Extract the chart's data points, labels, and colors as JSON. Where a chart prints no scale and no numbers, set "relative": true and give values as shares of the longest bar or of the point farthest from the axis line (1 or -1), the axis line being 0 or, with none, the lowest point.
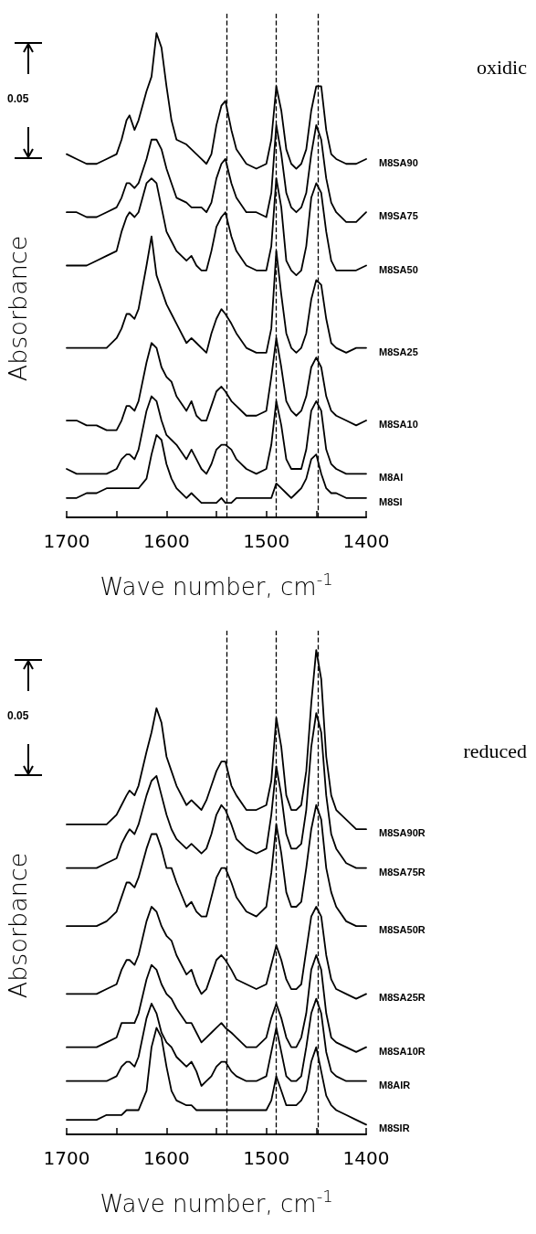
{
  "chart_data": [
    {
      "type": "line",
      "relative": true,
      "xlabel": "Wave number, cm$^{-1}$",
      "ylabel": "Absorbance",
      "annotations": [
        "0.05",
        "oxidic"
      ],
      "marker": "none",
      "line_style": "solid",
      "xlim": [
        1700,
        1400
      ],
      "xticks": [
        1700,
        {
          "value": 1650,
          "label": null
        },
        1600,
        {
          "value": 1550,
          "label": null
        },
        1500,
        {
          "value": 1450,
          "label": null
        },
        1400
      ],
      "x": [
        1700,
        1690,
        1680,
        1670,
        1660,
        1650,
        1645,
        1640,
        1637,
        1632,
        1628,
        1620,
        1615,
        1610,
        1605,
        1600,
        1595,
        1590,
        1580,
        1575,
        1570,
        1565,
        1560,
        1555,
        1550,
        1545,
        1541,
        1535,
        1530,
        1520,
        1510,
        1500,
        1495,
        1490,
        1485,
        1480,
        1475,
        1470,
        1465,
        1460,
        1455,
        1450,
        1445,
        1440,
        1435,
        1430,
        1420,
        1410,
        1400
      ],
      "ref_lines": [
        {
          "axis": "x",
          "value": 1540,
          "line_style": "dashed"
        },
        {
          "axis": "x",
          "value": 1490,
          "line_style": "dashed"
        },
        {
          "axis": "x",
          "value": 1448,
          "line_style": "dashed"
        }
      ],
      "series": [
        {
          "name": "M8SA90",
          "color": "#000000",
          "values": [
            0.75,
            0.74,
            0.73,
            0.73,
            0.74,
            0.75,
            0.78,
            0.82,
            0.83,
            0.8,
            0.82,
            0.88,
            0.91,
            1.0,
            0.97,
            0.89,
            0.82,
            0.78,
            0.77,
            0.76,
            0.75,
            0.74,
            0.73,
            0.75,
            0.81,
            0.85,
            0.86,
            0.8,
            0.76,
            0.73,
            0.72,
            0.73,
            0.78,
            0.89,
            0.84,
            0.76,
            0.73,
            0.72,
            0.73,
            0.76,
            0.84,
            0.89,
            0.89,
            0.8,
            0.75,
            0.74,
            0.73,
            0.73,
            0.74
          ]
        },
        {
          "name": "M9SA75",
          "color": "#000000",
          "values": [
            0.63,
            0.63,
            0.62,
            0.62,
            0.63,
            0.64,
            0.66,
            0.69,
            0.69,
            0.68,
            0.69,
            0.74,
            0.78,
            0.78,
            0.76,
            0.72,
            0.69,
            0.66,
            0.65,
            0.64,
            0.64,
            0.64,
            0.63,
            0.65,
            0.7,
            0.73,
            0.74,
            0.69,
            0.66,
            0.63,
            0.63,
            0.62,
            0.67,
            0.81,
            0.75,
            0.67,
            0.64,
            0.63,
            0.64,
            0.67,
            0.75,
            0.81,
            0.78,
            0.7,
            0.65,
            0.63,
            0.61,
            0.61,
            0.63
          ]
        },
        {
          "name": "M8SA50",
          "color": "#000000",
          "values": [
            0.52,
            0.52,
            0.52,
            0.53,
            0.54,
            0.55,
            0.59,
            0.62,
            0.63,
            0.62,
            0.63,
            0.69,
            0.7,
            0.69,
            0.64,
            0.59,
            0.57,
            0.55,
            0.53,
            0.54,
            0.52,
            0.51,
            0.51,
            0.55,
            0.6,
            0.62,
            0.63,
            0.58,
            0.55,
            0.52,
            0.51,
            0.51,
            0.56,
            0.7,
            0.64,
            0.53,
            0.51,
            0.5,
            0.51,
            0.56,
            0.66,
            0.69,
            0.67,
            0.59,
            0.53,
            0.51,
            0.51,
            0.51,
            0.52
          ]
        },
        {
          "name": "M8SA25",
          "color": "#000000",
          "values": [
            0.35,
            0.35,
            0.35,
            0.35,
            0.35,
            0.37,
            0.39,
            0.42,
            0.42,
            0.41,
            0.43,
            0.52,
            0.58,
            0.5,
            0.47,
            0.44,
            0.42,
            0.4,
            0.36,
            0.37,
            0.36,
            0.35,
            0.34,
            0.38,
            0.41,
            0.43,
            0.42,
            0.4,
            0.38,
            0.35,
            0.34,
            0.34,
            0.39,
            0.55,
            0.46,
            0.38,
            0.35,
            0.34,
            0.35,
            0.38,
            0.45,
            0.49,
            0.48,
            0.41,
            0.36,
            0.35,
            0.34,
            0.35,
            0.35
          ]
        },
        {
          "name": "M8SA10",
          "color": "#000000",
          "values": [
            0.2,
            0.2,
            0.19,
            0.19,
            0.18,
            0.18,
            0.2,
            0.23,
            0.23,
            0.22,
            0.24,
            0.32,
            0.36,
            0.35,
            0.31,
            0.29,
            0.28,
            0.25,
            0.22,
            0.24,
            0.21,
            0.2,
            0.2,
            0.23,
            0.26,
            0.27,
            0.26,
            0.24,
            0.23,
            0.21,
            0.21,
            0.22,
            0.29,
            0.37,
            0.31,
            0.24,
            0.22,
            0.21,
            0.22,
            0.25,
            0.31,
            0.33,
            0.31,
            0.25,
            0.22,
            0.21,
            0.2,
            0.19,
            0.2
          ]
        },
        {
          "name": "M8AI",
          "color": "#000000",
          "values": [
            0.1,
            0.09,
            0.09,
            0.09,
            0.09,
            0.1,
            0.12,
            0.13,
            0.13,
            0.12,
            0.14,
            0.22,
            0.25,
            0.24,
            0.2,
            0.17,
            0.16,
            0.15,
            0.12,
            0.14,
            0.12,
            0.1,
            0.09,
            0.11,
            0.14,
            0.15,
            0.15,
            0.14,
            0.12,
            0.1,
            0.09,
            0.1,
            0.15,
            0.24,
            0.19,
            0.12,
            0.1,
            0.1,
            0.1,
            0.14,
            0.22,
            0.24,
            0.22,
            0.14,
            0.11,
            0.1,
            0.09,
            0.09,
            0.09
          ]
        },
        {
          "name": "M8SI",
          "color": "#000000",
          "values": [
            0.04,
            0.04,
            0.05,
            0.05,
            0.06,
            0.06,
            0.06,
            0.06,
            0.06,
            0.06,
            0.06,
            0.08,
            0.13,
            0.17,
            0.16,
            0.11,
            0.08,
            0.06,
            0.04,
            0.05,
            0.04,
            0.03,
            0.03,
            0.03,
            0.03,
            0.04,
            0.03,
            0.03,
            0.04,
            0.04,
            0.04,
            0.04,
            0.04,
            0.07,
            0.06,
            0.05,
            0.04,
            0.05,
            0.06,
            0.08,
            0.12,
            0.13,
            0.09,
            0.06,
            0.05,
            0.05,
            0.04,
            0.04,
            0.04
          ]
        }
      ]
    },
    {
      "type": "line",
      "relative": true,
      "xlabel": "Wave number, cm$^{-1}$",
      "ylabel": "Absorbance",
      "annotations": [
        "0.05",
        "reduced"
      ],
      "marker": "none",
      "line_style": "solid",
      "xlim": [
        1700,
        1400
      ],
      "xticks": [
        1700,
        {
          "value": 1650,
          "label": null
        },
        1600,
        {
          "value": 1550,
          "label": null
        },
        1500,
        {
          "value": 1450,
          "label": null
        },
        1400
      ],
      "x": [
        1700,
        1690,
        1680,
        1670,
        1660,
        1650,
        1645,
        1640,
        1637,
        1632,
        1628,
        1620,
        1615,
        1610,
        1605,
        1600,
        1595,
        1590,
        1580,
        1575,
        1570,
        1565,
        1560,
        1555,
        1550,
        1545,
        1541,
        1535,
        1530,
        1520,
        1510,
        1500,
        1495,
        1490,
        1485,
        1480,
        1475,
        1470,
        1465,
        1460,
        1455,
        1450,
        1445,
        1440,
        1435,
        1430,
        1420,
        1410,
        1400
      ],
      "ref_lines": [
        {
          "axis": "x",
          "value": 1540,
          "line_style": "dashed"
        },
        {
          "axis": "x",
          "value": 1490,
          "line_style": "dashed"
        },
        {
          "axis": "x",
          "value": 1448,
          "line_style": "dashed"
        }
      ],
      "series": [
        {
          "name": "M8SA90R",
          "color": "#000000",
          "values": [
            0.64,
            0.64,
            0.64,
            0.64,
            0.64,
            0.66,
            0.68,
            0.7,
            0.71,
            0.7,
            0.72,
            0.79,
            0.83,
            0.88,
            0.85,
            0.78,
            0.75,
            0.72,
            0.68,
            0.69,
            0.68,
            0.67,
            0.69,
            0.72,
            0.75,
            0.77,
            0.77,
            0.72,
            0.7,
            0.67,
            0.67,
            0.68,
            0.73,
            0.86,
            0.8,
            0.7,
            0.67,
            0.67,
            0.68,
            0.75,
            0.89,
            1.0,
            0.94,
            0.78,
            0.7,
            0.67,
            0.65,
            0.63,
            0.63
          ]
        },
        {
          "name": "M8SA75R",
          "color": "#000000",
          "values": [
            0.55,
            0.55,
            0.55,
            0.55,
            0.56,
            0.57,
            0.6,
            0.62,
            0.63,
            0.62,
            0.64,
            0.7,
            0.73,
            0.74,
            0.7,
            0.66,
            0.63,
            0.61,
            0.59,
            0.6,
            0.59,
            0.58,
            0.59,
            0.62,
            0.66,
            0.68,
            0.67,
            0.64,
            0.61,
            0.59,
            0.58,
            0.59,
            0.66,
            0.76,
            0.7,
            0.62,
            0.59,
            0.59,
            0.6,
            0.67,
            0.8,
            0.87,
            0.83,
            0.7,
            0.62,
            0.59,
            0.56,
            0.55,
            0.55
          ]
        },
        {
          "name": "M8SA50R",
          "color": "#000000",
          "values": [
            0.43,
            0.43,
            0.43,
            0.43,
            0.44,
            0.46,
            0.49,
            0.52,
            0.52,
            0.51,
            0.53,
            0.59,
            0.62,
            0.62,
            0.59,
            0.55,
            0.55,
            0.52,
            0.47,
            0.48,
            0.46,
            0.45,
            0.45,
            0.49,
            0.53,
            0.55,
            0.55,
            0.52,
            0.49,
            0.46,
            0.45,
            0.47,
            0.54,
            0.64,
            0.58,
            0.5,
            0.47,
            0.47,
            0.48,
            0.55,
            0.63,
            0.68,
            0.65,
            0.55,
            0.5,
            0.47,
            0.44,
            0.43,
            0.43
          ]
        },
        {
          "name": "M8SA25R",
          "color": "#000000",
          "values": [
            0.29,
            0.29,
            0.29,
            0.29,
            0.3,
            0.31,
            0.34,
            0.36,
            0.36,
            0.35,
            0.37,
            0.44,
            0.47,
            0.46,
            0.43,
            0.41,
            0.4,
            0.37,
            0.33,
            0.34,
            0.31,
            0.29,
            0.3,
            0.33,
            0.36,
            0.37,
            0.36,
            0.34,
            0.32,
            0.31,
            0.3,
            0.31,
            0.35,
            0.39,
            0.36,
            0.32,
            0.3,
            0.3,
            0.31,
            0.38,
            0.45,
            0.47,
            0.45,
            0.37,
            0.32,
            0.3,
            0.29,
            0.28,
            0.29
          ]
        },
        {
          "name": "M8SA10R",
          "color": "#000000",
          "values": [
            0.18,
            0.18,
            0.18,
            0.18,
            0.19,
            0.2,
            0.23,
            0.23,
            0.23,
            0.23,
            0.25,
            0.32,
            0.35,
            0.34,
            0.31,
            0.29,
            0.28,
            0.26,
            0.23,
            0.23,
            0.21,
            0.19,
            0.2,
            0.21,
            0.22,
            0.23,
            0.22,
            0.21,
            0.2,
            0.18,
            0.18,
            0.2,
            0.24,
            0.27,
            0.24,
            0.2,
            0.18,
            0.18,
            0.2,
            0.25,
            0.34,
            0.37,
            0.34,
            0.25,
            0.2,
            0.19,
            0.18,
            0.17,
            0.18
          ]
        },
        {
          "name": "M8AIR",
          "color": "#000000",
          "values": [
            0.11,
            0.11,
            0.11,
            0.11,
            0.11,
            0.12,
            0.14,
            0.15,
            0.15,
            0.14,
            0.16,
            0.24,
            0.27,
            0.25,
            0.21,
            0.19,
            0.18,
            0.16,
            0.14,
            0.15,
            0.13,
            0.1,
            0.11,
            0.12,
            0.14,
            0.15,
            0.15,
            0.13,
            0.12,
            0.11,
            0.11,
            0.12,
            0.17,
            0.22,
            0.17,
            0.12,
            0.11,
            0.11,
            0.12,
            0.18,
            0.25,
            0.28,
            0.25,
            0.17,
            0.13,
            0.12,
            0.11,
            0.11,
            0.11
          ]
        },
        {
          "name": "M8SIR",
          "color": "#000000",
          "values": [
            0.03,
            0.03,
            0.03,
            0.03,
            0.04,
            0.04,
            0.04,
            0.05,
            0.05,
            0.05,
            0.05,
            0.09,
            0.18,
            0.22,
            0.2,
            0.14,
            0.09,
            0.07,
            0.06,
            0.06,
            0.05,
            0.05,
            0.05,
            0.05,
            0.05,
            0.05,
            0.05,
            0.05,
            0.05,
            0.05,
            0.05,
            0.05,
            0.07,
            0.12,
            0.09,
            0.06,
            0.06,
            0.06,
            0.07,
            0.09,
            0.15,
            0.18,
            0.13,
            0.08,
            0.06,
            0.05,
            0.04,
            0.03,
            0.02
          ]
        }
      ]
    }
  ]
}
